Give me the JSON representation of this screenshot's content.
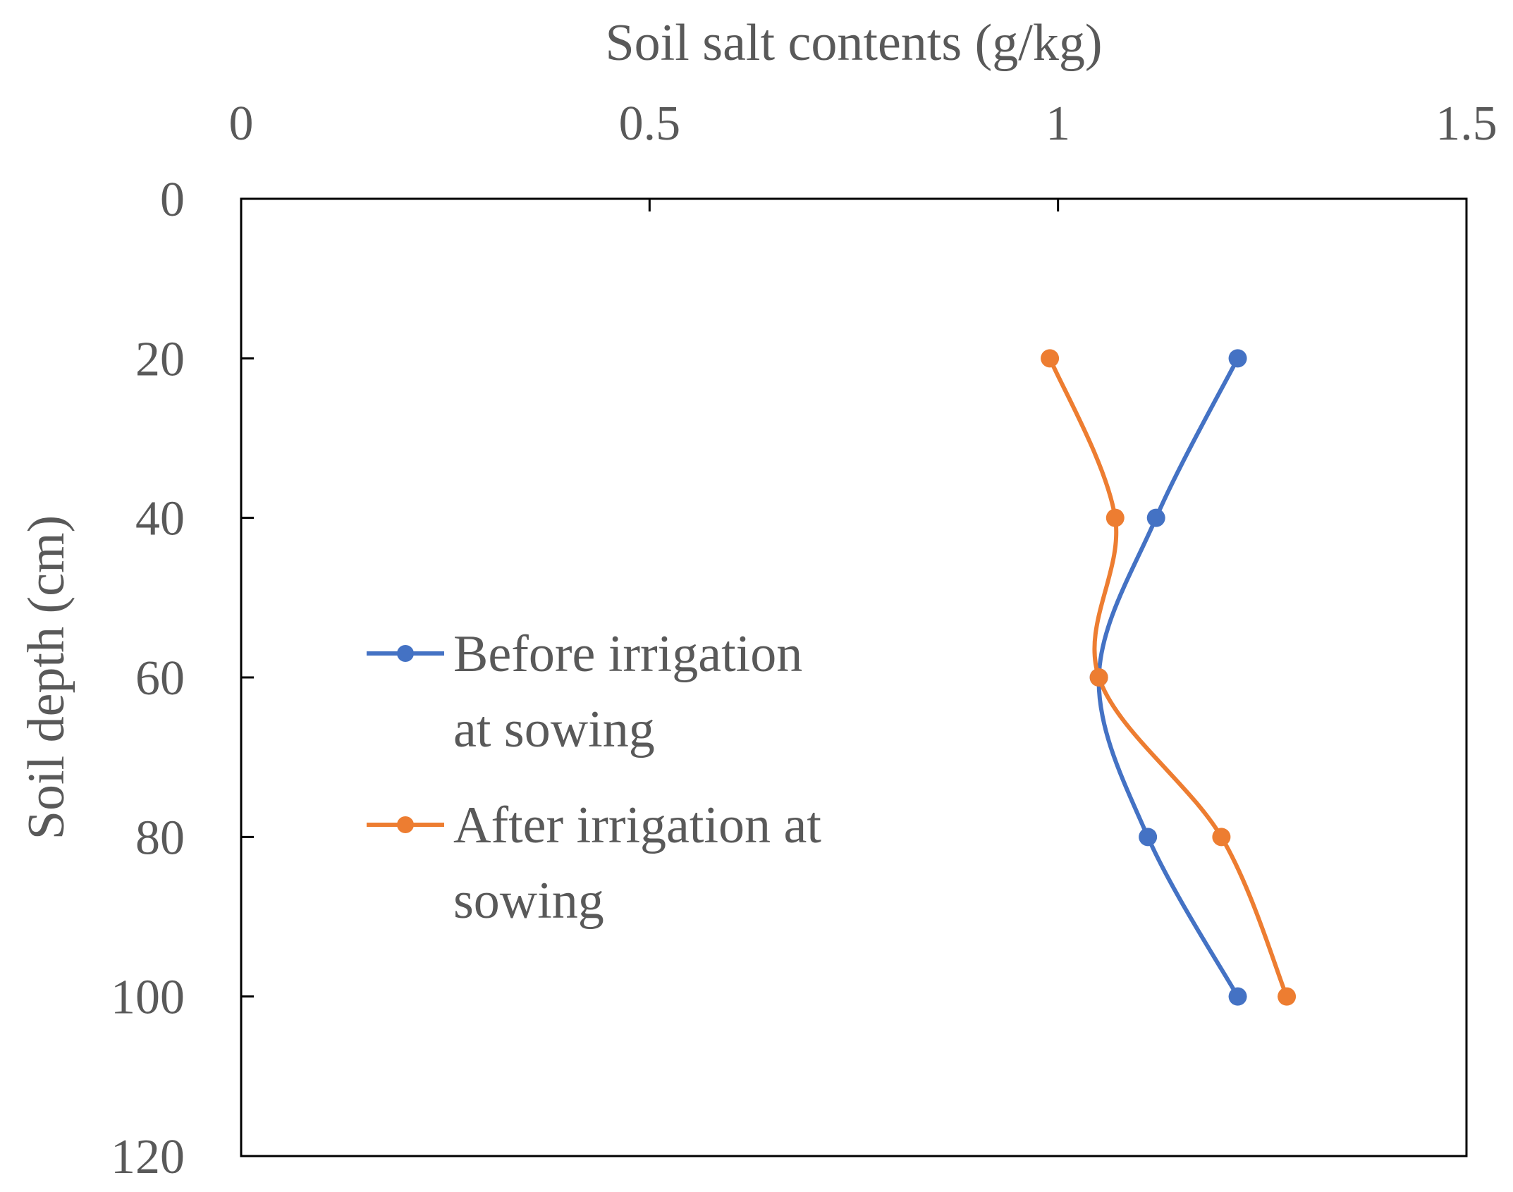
{
  "chart_data": {
    "type": "line",
    "title": "",
    "xlabel": "Soil salt contents (g/kg)",
    "ylabel": "Soil depth (cm)",
    "xlim": [
      0,
      1.5
    ],
    "ylim": [
      0,
      120
    ],
    "x_axis_position": "top",
    "y_axis_inverted": true,
    "x_ticks": [
      "0",
      "0.5",
      "1",
      "1.5"
    ],
    "y_ticks": [
      "0",
      "20",
      "40",
      "60",
      "80",
      "100",
      "120"
    ],
    "x_tick_values": [
      0,
      0.5,
      1,
      1.5
    ],
    "y_tick_values": [
      0,
      20,
      40,
      60,
      80,
      100,
      120
    ],
    "grid": false,
    "legend_position": "center-left",
    "smooth_lines": true,
    "series": [
      {
        "name": "Before irrigation at sowing",
        "legend_lines": [
          "Before irrigation",
          "at sowing"
        ],
        "color": "#4472C4",
        "depth": [
          20,
          40,
          60,
          80,
          100
        ],
        "salt": [
          1.22,
          1.12,
          1.05,
          1.11,
          1.22
        ]
      },
      {
        "name": "After irrigation at sowing",
        "legend_lines": [
          "After irrigation at",
          "sowing"
        ],
        "color": "#ED7D31",
        "depth": [
          20,
          40,
          60,
          80,
          100
        ],
        "salt": [
          0.99,
          1.07,
          1.05,
          1.2,
          1.28
        ]
      }
    ]
  }
}
